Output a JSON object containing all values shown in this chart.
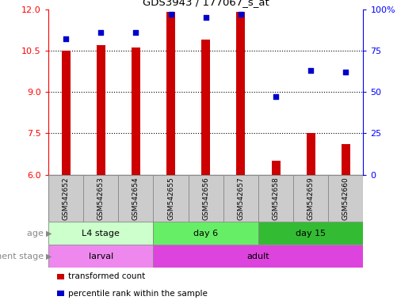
{
  "title": "GDS3943 / 177067_s_at",
  "samples": [
    "GSM542652",
    "GSM542653",
    "GSM542654",
    "GSM542655",
    "GSM542656",
    "GSM542657",
    "GSM542658",
    "GSM542659",
    "GSM542660"
  ],
  "bar_values": [
    10.5,
    10.7,
    10.6,
    11.9,
    10.9,
    11.9,
    6.5,
    7.5,
    7.1
  ],
  "dot_values": [
    82,
    86,
    86,
    97,
    95,
    97,
    47,
    63,
    62
  ],
  "ylim_left": [
    6,
    12
  ],
  "ylim_right": [
    0,
    100
  ],
  "yticks_left": [
    6,
    7.5,
    9,
    10.5,
    12
  ],
  "yticks_right": [
    0,
    25,
    50,
    75,
    100
  ],
  "bar_color": "#cc0000",
  "dot_color": "#0000cc",
  "bar_width": 0.25,
  "age_groups": [
    {
      "label": "L4 stage",
      "start": 0,
      "end": 3,
      "color": "#ccffcc"
    },
    {
      "label": "day 6",
      "start": 3,
      "end": 6,
      "color": "#66ee66"
    },
    {
      "label": "day 15",
      "start": 6,
      "end": 9,
      "color": "#33bb33"
    }
  ],
  "dev_groups": [
    {
      "label": "larval",
      "start": 0,
      "end": 3,
      "color": "#ee88ee"
    },
    {
      "label": "adult",
      "start": 3,
      "end": 9,
      "color": "#dd44dd"
    }
  ],
  "legend_items": [
    {
      "color": "#cc0000",
      "label": "transformed count"
    },
    {
      "color": "#0000cc",
      "label": "percentile rank within the sample"
    }
  ],
  "background_color": "#ffffff",
  "tick_area_color": "#cccccc",
  "right_tick_labels": [
    "0",
    "25",
    "50",
    "75",
    "100%"
  ]
}
